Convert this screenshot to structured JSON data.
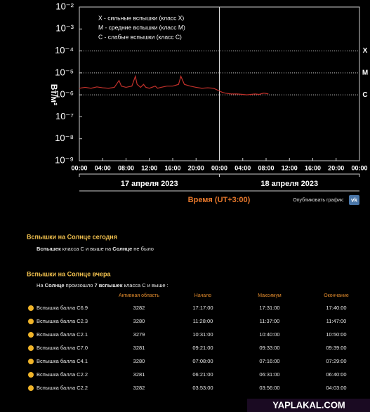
{
  "chart_data": {
    "type": "line",
    "y_label": "Вт/м²",
    "x_title": "Время (UT+3:00)",
    "log_scale": true,
    "ylim": [
      1e-09,
      0.01
    ],
    "yticks": [
      {
        "value": 1e-09,
        "label": "10⁻⁹"
      },
      {
        "value": 1e-08,
        "label": "10⁻⁸"
      },
      {
        "value": 1e-07,
        "label": "10⁻⁷"
      },
      {
        "value": 1e-06,
        "label": "10⁻⁶"
      },
      {
        "value": 1e-05,
        "label": "10⁻⁵"
      },
      {
        "value": 0.0001,
        "label": "10⁻⁴"
      },
      {
        "value": 0.001,
        "label": "10⁻³"
      },
      {
        "value": 0.01,
        "label": "10⁻²"
      }
    ],
    "xlim": [
      0,
      48
    ],
    "xticks": [
      {
        "value": 0,
        "label": "00:00"
      },
      {
        "value": 4,
        "label": "04:00"
      },
      {
        "value": 8,
        "label": "08:00"
      },
      {
        "value": 12,
        "label": "12:00"
      },
      {
        "value": 16,
        "label": "16:00"
      },
      {
        "value": 20,
        "label": "20:00"
      },
      {
        "value": 24,
        "label": "00:00"
      },
      {
        "value": 28,
        "label": "04:00"
      },
      {
        "value": 32,
        "label": "08:00"
      },
      {
        "value": 36,
        "label": "12:00"
      },
      {
        "value": 40,
        "label": "16:00"
      },
      {
        "value": 44,
        "label": "20:00"
      },
      {
        "value": 48,
        "label": "00:00"
      }
    ],
    "day_labels": [
      "17 апреля 2023",
      "18 апреля 2023"
    ],
    "levels": [
      {
        "value": 0.0001,
        "label": "X"
      },
      {
        "value": 1e-05,
        "label": "M"
      },
      {
        "value": 1e-06,
        "label": "C"
      }
    ],
    "legend": [
      "X - сильные вспышки (класс X)",
      "M - средние вспышки (класс M)",
      "C - слабые вспышки (класс C)"
    ],
    "series": [
      {
        "color": "#c0302a",
        "x": [
          0,
          1,
          2,
          3,
          4,
          5,
          6,
          6.8,
          7.2,
          8,
          9,
          9.6,
          9.9,
          10.5,
          11,
          11.4,
          12,
          13,
          13.4,
          14,
          15,
          16,
          17,
          17.4,
          18,
          19,
          20,
          21,
          22,
          23,
          24,
          24.5,
          25,
          26,
          27,
          28,
          28.7,
          29.4,
          30.1,
          30.8,
          31.6,
          32.4
        ],
        "values": [
          2e-06,
          2.2e-06,
          2e-06,
          2.3e-06,
          2.1e-06,
          2e-06,
          2.2e-06,
          4.5e-06,
          2.5e-06,
          2.2e-06,
          2.5e-06,
          7e-06,
          3e-06,
          2.2e-06,
          3e-06,
          2.2e-06,
          2e-06,
          2.5e-06,
          2e-06,
          2.2e-06,
          2.5e-06,
          2.5e-06,
          3e-06,
          7e-06,
          3e-06,
          2.5e-06,
          2.2e-06,
          2e-06,
          2.1e-06,
          2e-06,
          1.5e-06,
          1.3e-06,
          1.2e-06,
          1.1e-06,
          1.1e-06,
          1.05e-06,
          1e-06,
          1.05e-06,
          1.1e-06,
          1.05e-06,
          1.2e-06,
          1.1e-06
        ]
      }
    ]
  },
  "share": "Опубликовать график:",
  "today": {
    "title": "Вспышки на Солнце сегодня",
    "note": [
      "Вспышек",
      " класса С и выше на ",
      "Солнце",
      " не было"
    ]
  },
  "yesterday": {
    "title": "Вспышки на Солнце вчера",
    "note": [
      "На ",
      "Солнце",
      " произошло ",
      "7 вспышек",
      " класса С и выше :"
    ],
    "table": {
      "headers": [
        "Активная область",
        "Начало",
        "Максимум",
        "Окончание"
      ],
      "rows": [
        [
          "Вспышка балла C6.9",
          "3282",
          "17:17:00",
          "17:31:00",
          "17:40:00"
        ],
        [
          "Вспышка балла C2.3",
          "3280",
          "11:28:00",
          "11:37:00",
          "11:47:00"
        ],
        [
          "Вспышка балла C2.1",
          "3279",
          "10:31:00",
          "10:40:00",
          "10:50:00"
        ],
        [
          "Вспышка балла C7.0",
          "3281",
          "09:21:00",
          "09:33:00",
          "09:39:00"
        ],
        [
          "Вспышка балла C4.1",
          "3280",
          "07:08:00",
          "07:16:00",
          "07:29:00"
        ],
        [
          "Вспышка балла C2.2",
          "3281",
          "06:21:00",
          "06:31:00",
          "06:40:00"
        ],
        [
          "Вспышка балла C2.2",
          "3282",
          "03:53:00",
          "03:56:00",
          "04:03:00"
        ]
      ]
    }
  },
  "watermark": "YAPLAKAL.COM"
}
